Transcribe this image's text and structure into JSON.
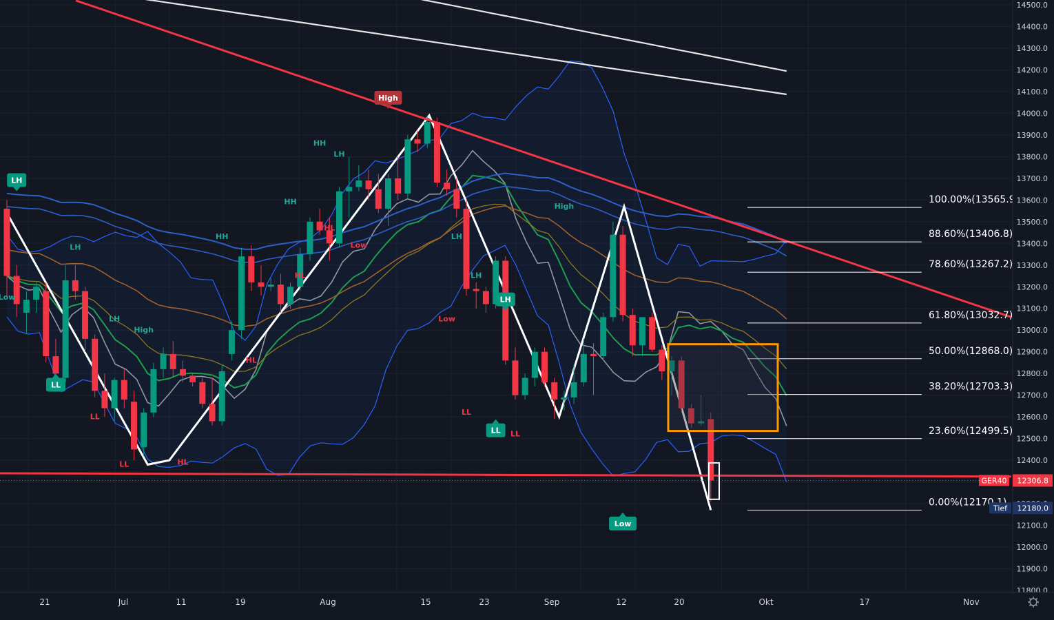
{
  "chart_data": {
    "type": "candlestick",
    "symbol_tag": "GER40",
    "last_price": "12306.8",
    "low_tag_label": "Tief",
    "low_tag_price": "12180.0",
    "y_axis": {
      "min": 11800,
      "max": 14500,
      "ticks": [
        "14500.0",
        "14400.0",
        "14300.0",
        "14200.0",
        "14100.0",
        "14000.0",
        "13900.0",
        "13800.0",
        "13700.0",
        "13600.0",
        "13500.0",
        "13400.0",
        "13300.0",
        "13200.0",
        "13100.0",
        "13000.0",
        "12900.0",
        "12800.0",
        "12700.0",
        "12600.0",
        "12500.0",
        "12400.0",
        "12300.0",
        "12200.0",
        "12100.0",
        "12000.0",
        "11900.0",
        "11800.0"
      ]
    },
    "x_axis": {
      "ticks": [
        {
          "label": "21",
          "bar": 2
        },
        {
          "label": "Jul",
          "bar": 10
        },
        {
          "label": "11",
          "bar": 15
        },
        {
          "label": "19",
          "bar": 20
        },
        {
          "label": "Aug",
          "bar": 27
        },
        {
          "label": "15",
          "bar": 36
        },
        {
          "label": "23",
          "bar": 41
        },
        {
          "label": "Sep",
          "bar": 47
        },
        {
          "label": "12",
          "bar": 53
        },
        {
          "label": "20",
          "bar": 58
        },
        {
          "label": "Okt",
          "bar": 66
        },
        {
          "label": "17",
          "bar": 74
        },
        {
          "label": "Nov",
          "bar": 83
        }
      ]
    },
    "candles": [
      {
        "o": 13560,
        "h": 13600,
        "l": 13150,
        "c": 13250
      },
      {
        "o": 13250,
        "h": 13300,
        "l": 13060,
        "c": 13120
      },
      {
        "o": 13080,
        "h": 13180,
        "l": 12980,
        "c": 13140
      },
      {
        "o": 13140,
        "h": 13220,
        "l": 13080,
        "c": 13200
      },
      {
        "o": 13180,
        "h": 13220,
        "l": 12850,
        "c": 12880
      },
      {
        "o": 12880,
        "h": 12960,
        "l": 12780,
        "c": 12800
      },
      {
        "o": 12780,
        "h": 13300,
        "l": 12760,
        "c": 13230
      },
      {
        "o": 13230,
        "h": 13300,
        "l": 13140,
        "c": 13180
      },
      {
        "o": 13180,
        "h": 13200,
        "l": 12900,
        "c": 12960
      },
      {
        "o": 12960,
        "h": 12980,
        "l": 12690,
        "c": 12720
      },
      {
        "o": 12720,
        "h": 12800,
        "l": 12600,
        "c": 12640
      },
      {
        "o": 12640,
        "h": 12780,
        "l": 12580,
        "c": 12770
      },
      {
        "o": 12770,
        "h": 12820,
        "l": 12640,
        "c": 12680
      },
      {
        "o": 12670,
        "h": 12720,
        "l": 12400,
        "c": 12450
      },
      {
        "o": 12460,
        "h": 12640,
        "l": 12420,
        "c": 12620
      },
      {
        "o": 12620,
        "h": 12850,
        "l": 12600,
        "c": 12820
      },
      {
        "o": 12820,
        "h": 12920,
        "l": 12780,
        "c": 12890
      },
      {
        "o": 12890,
        "h": 12950,
        "l": 12780,
        "c": 12820
      },
      {
        "o": 12820,
        "h": 12860,
        "l": 12760,
        "c": 12790
      },
      {
        "o": 12790,
        "h": 12800,
        "l": 12740,
        "c": 12760
      },
      {
        "o": 12760,
        "h": 12780,
        "l": 12640,
        "c": 12660
      },
      {
        "o": 12660,
        "h": 12780,
        "l": 12560,
        "c": 12580
      },
      {
        "o": 12580,
        "h": 12840,
        "l": 12560,
        "c": 12810
      },
      {
        "o": 12890,
        "h": 13040,
        "l": 12860,
        "c": 13000
      },
      {
        "o": 13000,
        "h": 13380,
        "l": 12960,
        "c": 13340
      },
      {
        "o": 13340,
        "h": 13390,
        "l": 13180,
        "c": 13220
      },
      {
        "o": 13220,
        "h": 13300,
        "l": 13160,
        "c": 13200
      },
      {
        "o": 13200,
        "h": 13240,
        "l": 13180,
        "c": 13210
      },
      {
        "o": 13210,
        "h": 13260,
        "l": 13080,
        "c": 13120
      },
      {
        "o": 13120,
        "h": 13220,
        "l": 13100,
        "c": 13200
      },
      {
        "o": 13200,
        "h": 13380,
        "l": 13180,
        "c": 13350
      },
      {
        "o": 13350,
        "h": 13520,
        "l": 13320,
        "c": 13500
      },
      {
        "o": 13500,
        "h": 13560,
        "l": 13440,
        "c": 13460
      },
      {
        "o": 13460,
        "h": 13520,
        "l": 13320,
        "c": 13400
      },
      {
        "o": 13400,
        "h": 13660,
        "l": 13380,
        "c": 13640
      },
      {
        "o": 13640,
        "h": 13800,
        "l": 13520,
        "c": 13660
      },
      {
        "o": 13660,
        "h": 13760,
        "l": 13640,
        "c": 13690
      },
      {
        "o": 13690,
        "h": 13740,
        "l": 13600,
        "c": 13650
      },
      {
        "o": 13650,
        "h": 13720,
        "l": 13540,
        "c": 13560
      },
      {
        "o": 13560,
        "h": 13720,
        "l": 13480,
        "c": 13700
      },
      {
        "o": 13700,
        "h": 13800,
        "l": 13600,
        "c": 13630
      },
      {
        "o": 13630,
        "h": 13900,
        "l": 13610,
        "c": 13880
      },
      {
        "o": 13880,
        "h": 13920,
        "l": 13820,
        "c": 13860
      },
      {
        "o": 13860,
        "h": 13990,
        "l": 13840,
        "c": 13960
      },
      {
        "o": 13960,
        "h": 13980,
        "l": 13660,
        "c": 13680
      },
      {
        "o": 13680,
        "h": 13740,
        "l": 13620,
        "c": 13650
      },
      {
        "o": 13650,
        "h": 13700,
        "l": 13520,
        "c": 13560
      },
      {
        "o": 13560,
        "h": 13600,
        "l": 13160,
        "c": 13190
      },
      {
        "o": 13190,
        "h": 13220,
        "l": 13100,
        "c": 13180
      },
      {
        "o": 13180,
        "h": 13200,
        "l": 13080,
        "c": 13120
      },
      {
        "o": 13120,
        "h": 13340,
        "l": 13100,
        "c": 13320
      },
      {
        "o": 13320,
        "h": 13340,
        "l": 12840,
        "c": 12860
      },
      {
        "o": 12860,
        "h": 12920,
        "l": 12680,
        "c": 12700
      },
      {
        "o": 12700,
        "h": 12800,
        "l": 12680,
        "c": 12780
      },
      {
        "o": 12780,
        "h": 12920,
        "l": 12740,
        "c": 12900
      },
      {
        "o": 12900,
        "h": 12920,
        "l": 12740,
        "c": 12760
      },
      {
        "o": 12760,
        "h": 12780,
        "l": 12590,
        "c": 12680
      },
      {
        "o": 12680,
        "h": 12720,
        "l": 12630,
        "c": 12690
      },
      {
        "o": 12690,
        "h": 12840,
        "l": 12660,
        "c": 12760
      },
      {
        "o": 12760,
        "h": 12960,
        "l": 12740,
        "c": 12890
      },
      {
        "o": 12890,
        "h": 12940,
        "l": 12700,
        "c": 12880
      },
      {
        "o": 12880,
        "h": 13080,
        "l": 12860,
        "c": 13060
      },
      {
        "o": 13060,
        "h": 13500,
        "l": 13040,
        "c": 13440
      },
      {
        "o": 13440,
        "h": 13480,
        "l": 13040,
        "c": 13070
      },
      {
        "o": 13070,
        "h": 13100,
        "l": 12880,
        "c": 12930
      },
      {
        "o": 12930,
        "h": 13060,
        "l": 12880,
        "c": 13060
      },
      {
        "o": 13060,
        "h": 13080,
        "l": 12900,
        "c": 12910
      },
      {
        "o": 12910,
        "h": 12930,
        "l": 12770,
        "c": 12810
      },
      {
        "o": 12810,
        "h": 12880,
        "l": 12700,
        "c": 12860
      },
      {
        "o": 12860,
        "h": 12880,
        "l": 12620,
        "c": 12640
      },
      {
        "o": 12640,
        "h": 12660,
        "l": 12550,
        "c": 12570
      },
      {
        "o": 12570,
        "h": 12700,
        "l": 12560,
        "c": 12580
      },
      {
        "o": 12590,
        "h": 12620,
        "l": 12210,
        "c": 12306.8
      }
    ],
    "fib_levels": [
      {
        "label": "100.00%(13565.9",
        "value": 13565.9
      },
      {
        "label": "88.60%(13406.8)",
        "value": 13406.8
      },
      {
        "label": "78.60%(13267.2)",
        "value": 13267.2
      },
      {
        "label": "61.80%(13032.7)",
        "value": 13032.7
      },
      {
        "label": "50.00%(12868.0)",
        "value": 12868.0
      },
      {
        "label": "38.20%(12703.3)",
        "value": 12703.3
      },
      {
        "label": "23.60%(12499.5)",
        "value": 12499.5
      },
      {
        "label": "0.00%(12170.1)",
        "value": 12170.1
      }
    ],
    "swing_labels": [
      {
        "text": "LH",
        "bar": 1,
        "price": 13660,
        "kind": "badge",
        "color": "#089981"
      },
      {
        "text": "Low",
        "bar": 0,
        "price": 13140,
        "kind": "text",
        "color": "#26a69a"
      },
      {
        "text": "LL",
        "bar": 5,
        "price": 12780,
        "kind": "badge-below",
        "color": "#089981"
      },
      {
        "text": "LH",
        "bar": 7,
        "price": 13370,
        "kind": "text",
        "color": "#26a69a"
      },
      {
        "text": "LL",
        "bar": 9,
        "price": 12590,
        "kind": "text",
        "color": "#f23645"
      },
      {
        "text": "LH",
        "bar": 11,
        "price": 13040,
        "kind": "text",
        "color": "#26a69a"
      },
      {
        "text": "High",
        "bar": 14,
        "price": 12990,
        "kind": "text",
        "color": "#26a69a"
      },
      {
        "text": "LL",
        "bar": 12,
        "price": 12370,
        "kind": "text",
        "color": "#f23645"
      },
      {
        "text": "HL",
        "bar": 18,
        "price": 12380,
        "kind": "text",
        "color": "#f23645"
      },
      {
        "text": "HH",
        "bar": 22,
        "price": 13420,
        "kind": "text",
        "color": "#26a69a"
      },
      {
        "text": "HL",
        "bar": 25,
        "price": 12850,
        "kind": "text",
        "color": "#f23645"
      },
      {
        "text": "HH",
        "bar": 29,
        "price": 13580,
        "kind": "text",
        "color": "#26a69a"
      },
      {
        "text": "HL",
        "bar": 30,
        "price": 13240,
        "kind": "text",
        "color": "#f23645"
      },
      {
        "text": "HH",
        "bar": 32,
        "price": 13850,
        "kind": "text",
        "color": "#26a69a"
      },
      {
        "text": "LH",
        "bar": 34,
        "price": 13800,
        "kind": "text",
        "color": "#26a69a"
      },
      {
        "text": "HL",
        "bar": 33,
        "price": 13460,
        "kind": "text",
        "color": "#f23645"
      },
      {
        "text": "Low",
        "bar": 36,
        "price": 13380,
        "kind": "text",
        "color": "#f23645"
      },
      {
        "text": "High",
        "bar": 39,
        "price": 14040,
        "kind": "badge",
        "color": "#b2353c"
      },
      {
        "text": "Low",
        "bar": 45,
        "price": 13040,
        "kind": "text",
        "color": "#f23645"
      },
      {
        "text": "LH",
        "bar": 46,
        "price": 13420,
        "kind": "text",
        "color": "#26a69a"
      },
      {
        "text": "LH",
        "bar": 48,
        "price": 13240,
        "kind": "text",
        "color": "#26a69a"
      },
      {
        "text": "LL",
        "bar": 47,
        "price": 12610,
        "kind": "text",
        "color": "#f23645"
      },
      {
        "text": "LH",
        "bar": 51,
        "price": 13110,
        "kind": "badge",
        "color": "#089981"
      },
      {
        "text": "LL",
        "bar": 50,
        "price": 12570,
        "kind": "badge-below",
        "color": "#089981"
      },
      {
        "text": "LL",
        "bar": 52,
        "price": 12510,
        "kind": "text",
        "color": "#f23645"
      },
      {
        "text": "High",
        "bar": 57,
        "price": 13560,
        "kind": "text",
        "color": "#26a69a"
      },
      {
        "text": "Low",
        "bar": 63,
        "price": 12140,
        "kind": "badge-below",
        "color": "#089981"
      }
    ]
  }
}
